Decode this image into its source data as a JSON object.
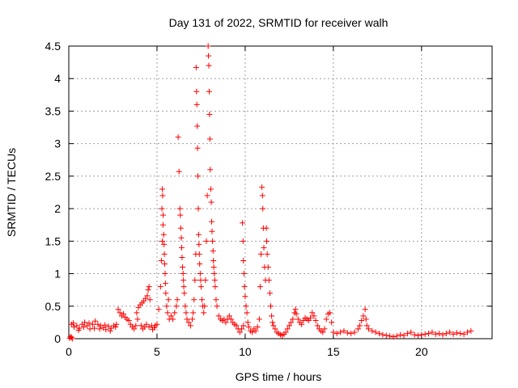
{
  "chart_data": {
    "type": "scatter",
    "title": "Day 131 of 2022, SRMTID for receiver walh",
    "xlabel": "GPS time / hours",
    "ylabel": "SRMTID / TECUs",
    "xlim": [
      0,
      24
    ],
    "ylim": [
      0,
      4.5
    ],
    "x_ticks": [
      0,
      5,
      10,
      15,
      20
    ],
    "x_tick_labels": [
      "0",
      "5",
      "10",
      "15",
      "20"
    ],
    "y_ticks": [
      0,
      0.5,
      1,
      1.5,
      2,
      2.5,
      3,
      3.5,
      4,
      4.5
    ],
    "y_tick_labels": [
      "0",
      "0.5",
      "1",
      "1.5",
      "2",
      "2.5",
      "3",
      "3.5",
      "4",
      "4.5"
    ],
    "grid": true,
    "marker": "plus",
    "series": [
      {
        "name": "SRMTID",
        "color": "#ff0000",
        "points": [
          [
            0.05,
            0.01
          ],
          [
            0.1,
            0.03
          ],
          [
            0.15,
            0.02
          ],
          [
            0.2,
            0.0
          ],
          [
            0.15,
            0.22
          ],
          [
            0.3,
            0.18
          ],
          [
            0.45,
            0.2
          ],
          [
            0.6,
            0.16
          ],
          [
            0.75,
            0.22
          ],
          [
            0.9,
            0.25
          ],
          [
            1.05,
            0.2
          ],
          [
            1.2,
            0.15
          ],
          [
            1.35,
            0.22
          ],
          [
            1.5,
            0.27
          ],
          [
            1.65,
            0.22
          ],
          [
            1.8,
            0.2
          ],
          [
            1.95,
            0.17
          ],
          [
            2.1,
            0.14
          ],
          [
            2.25,
            0.19
          ],
          [
            2.4,
            0.16
          ],
          [
            2.55,
            0.2
          ],
          [
            2.7,
            0.22
          ],
          [
            0.25,
            0.24
          ],
          [
            0.55,
            0.13
          ],
          [
            0.85,
            0.18
          ],
          [
            1.15,
            0.24
          ],
          [
            1.45,
            0.16
          ],
          [
            1.75,
            0.15
          ],
          [
            2.05,
            0.21
          ],
          [
            2.35,
            0.12
          ],
          [
            2.65,
            0.18
          ],
          [
            2.8,
            0.45
          ],
          [
            2.9,
            0.4
          ],
          [
            3.0,
            0.35
          ],
          [
            3.1,
            0.38
          ],
          [
            3.2,
            0.33
          ],
          [
            3.3,
            0.3
          ],
          [
            3.4,
            0.28
          ],
          [
            3.5,
            0.22
          ],
          [
            3.6,
            0.18
          ],
          [
            3.7,
            0.15
          ],
          [
            3.8,
            0.2
          ],
          [
            3.9,
            0.3
          ],
          [
            3.85,
            0.4
          ],
          [
            3.95,
            0.48
          ],
          [
            4.05,
            0.52
          ],
          [
            4.15,
            0.55
          ],
          [
            4.25,
            0.58
          ],
          [
            4.35,
            0.62
          ],
          [
            4.45,
            0.66
          ],
          [
            4.5,
            0.75
          ],
          [
            4.55,
            0.8
          ],
          [
            4.6,
            0.6
          ],
          [
            4.1,
            0.2
          ],
          [
            4.2,
            0.15
          ],
          [
            4.3,
            0.18
          ],
          [
            4.4,
            0.22
          ],
          [
            4.55,
            0.18
          ],
          [
            4.7,
            0.2
          ],
          [
            4.85,
            0.17
          ],
          [
            5.0,
            0.22
          ],
          [
            4.75,
            0.14
          ],
          [
            4.9,
            0.2
          ],
          [
            5.1,
            0.45
          ],
          [
            5.2,
            0.8
          ],
          [
            5.25,
            1.2
          ],
          [
            5.3,
            1.5
          ],
          [
            5.3,
            2.3
          ],
          [
            5.32,
            2.2
          ],
          [
            5.35,
            1.9
          ],
          [
            5.38,
            1.6
          ],
          [
            5.42,
            1.3
          ],
          [
            5.46,
            1.0
          ],
          [
            5.5,
            0.7
          ],
          [
            5.55,
            0.5
          ],
          [
            5.6,
            0.4
          ],
          [
            5.65,
            0.6
          ],
          [
            5.7,
            0.3
          ],
          [
            5.28,
            2.0
          ],
          [
            5.34,
            1.75
          ],
          [
            5.4,
            1.45
          ],
          [
            5.44,
            1.15
          ],
          [
            5.48,
            0.85
          ],
          [
            5.8,
            0.35
          ],
          [
            5.9,
            0.3
          ],
          [
            6.0,
            0.4
          ],
          [
            6.1,
            0.5
          ],
          [
            6.15,
            0.6
          ],
          [
            6.2,
            3.1
          ],
          [
            6.25,
            2.57
          ],
          [
            6.3,
            2.0
          ],
          [
            6.35,
            1.7
          ],
          [
            6.4,
            1.4
          ],
          [
            6.45,
            1.1
          ],
          [
            6.5,
            0.9
          ],
          [
            6.55,
            0.7
          ],
          [
            6.6,
            0.5
          ],
          [
            6.65,
            0.4
          ],
          [
            6.7,
            0.3
          ],
          [
            6.8,
            0.25
          ],
          [
            6.9,
            0.2
          ],
          [
            7.0,
            0.3
          ],
          [
            6.32,
            1.9
          ],
          [
            6.38,
            1.55
          ],
          [
            6.42,
            1.25
          ],
          [
            6.48,
            1.0
          ],
          [
            6.52,
            0.8
          ],
          [
            7.05,
            0.4
          ],
          [
            7.1,
            0.6
          ],
          [
            7.15,
            0.9
          ],
          [
            7.2,
            1.3
          ],
          [
            7.22,
            4.17
          ],
          [
            7.24,
            3.8
          ],
          [
            7.26,
            3.6
          ],
          [
            7.28,
            3.27
          ],
          [
            7.3,
            2.93
          ],
          [
            7.32,
            2.5
          ],
          [
            7.34,
            2.0
          ],
          [
            7.36,
            1.6
          ],
          [
            7.4,
            1.3
          ],
          [
            7.45,
            1.0
          ],
          [
            7.5,
            0.8
          ],
          [
            7.55,
            0.6
          ],
          [
            7.6,
            0.5
          ],
          [
            7.65,
            0.4
          ],
          [
            7.38,
            1.45
          ],
          [
            7.42,
            1.15
          ],
          [
            7.48,
            0.9
          ],
          [
            7.7,
            0.5
          ],
          [
            7.75,
            0.9
          ],
          [
            7.8,
            1.5
          ],
          [
            7.85,
            2.2
          ],
          [
            7.9,
            4.5
          ],
          [
            7.92,
            4.35
          ],
          [
            7.94,
            4.2
          ],
          [
            7.96,
            3.8
          ],
          [
            7.98,
            3.45
          ],
          [
            8.0,
            3.07
          ],
          [
            8.02,
            2.6
          ],
          [
            8.05,
            2.3
          ],
          [
            8.08,
            2.1
          ],
          [
            8.1,
            1.8
          ],
          [
            8.15,
            1.5
          ],
          [
            8.2,
            1.2
          ],
          [
            8.25,
            1.0
          ],
          [
            8.3,
            0.8
          ],
          [
            8.35,
            0.6
          ],
          [
            8.4,
            0.5
          ],
          [
            8.12,
            1.65
          ],
          [
            8.18,
            1.35
          ],
          [
            8.22,
            1.1
          ],
          [
            8.28,
            0.9
          ],
          [
            8.5,
            0.35
          ],
          [
            8.6,
            0.3
          ],
          [
            8.7,
            0.28
          ],
          [
            8.8,
            0.3
          ],
          [
            8.9,
            0.25
          ],
          [
            9.0,
            0.3
          ],
          [
            9.1,
            0.35
          ],
          [
            9.2,
            0.3
          ],
          [
            9.3,
            0.25
          ],
          [
            9.4,
            0.22
          ],
          [
            9.5,
            0.2
          ],
          [
            9.6,
            0.15
          ],
          [
            9.7,
            0.1
          ],
          [
            9.8,
            0.15
          ],
          [
            9.9,
            0.2
          ],
          [
            9.85,
            1.78
          ],
          [
            9.88,
            1.5
          ],
          [
            9.9,
            1.2
          ],
          [
            9.93,
            1.0
          ],
          [
            9.96,
            0.8
          ],
          [
            10.0,
            0.65
          ],
          [
            10.05,
            0.5
          ],
          [
            10.1,
            0.4
          ],
          [
            10.15,
            0.25
          ],
          [
            10.2,
            0.18
          ],
          [
            10.3,
            0.12
          ],
          [
            10.4,
            0.1
          ],
          [
            10.5,
            0.15
          ],
          [
            10.6,
            0.12
          ],
          [
            10.7,
            0.18
          ],
          [
            10.8,
            0.3
          ],
          [
            10.85,
            0.8
          ],
          [
            10.9,
            1.3
          ],
          [
            10.95,
            2.33
          ],
          [
            10.98,
            2.2
          ],
          [
            11.0,
            2.0
          ],
          [
            11.03,
            1.7
          ],
          [
            11.06,
            1.4
          ],
          [
            11.1,
            1.1
          ],
          [
            11.15,
            0.9
          ],
          [
            11.2,
            1.7
          ],
          [
            11.22,
            1.5
          ],
          [
            11.25,
            1.3
          ],
          [
            11.3,
            1.1
          ],
          [
            11.35,
            0.9
          ],
          [
            11.4,
            0.7
          ],
          [
            11.45,
            0.5
          ],
          [
            11.5,
            0.35
          ],
          [
            11.55,
            0.25
          ],
          [
            11.6,
            0.2
          ],
          [
            11.7,
            0.15
          ],
          [
            11.8,
            0.1
          ],
          [
            11.9,
            0.08
          ],
          [
            12.0,
            0.06
          ],
          [
            12.1,
            0.05
          ],
          [
            12.2,
            0.07
          ],
          [
            12.3,
            0.1
          ],
          [
            12.4,
            0.15
          ],
          [
            12.5,
            0.2
          ],
          [
            12.6,
            0.25
          ],
          [
            12.7,
            0.3
          ],
          [
            12.8,
            0.4
          ],
          [
            12.85,
            0.45
          ],
          [
            12.9,
            0.38
          ],
          [
            13.0,
            0.3
          ],
          [
            13.1,
            0.25
          ],
          [
            13.2,
            0.22
          ],
          [
            13.3,
            0.28
          ],
          [
            13.4,
            0.32
          ],
          [
            13.5,
            0.3
          ],
          [
            13.6,
            0.28
          ],
          [
            13.7,
            0.32
          ],
          [
            13.8,
            0.4
          ],
          [
            13.9,
            0.35
          ],
          [
            14.0,
            0.28
          ],
          [
            14.1,
            0.2
          ],
          [
            14.2,
            0.15
          ],
          [
            14.3,
            0.12
          ],
          [
            14.4,
            0.1
          ],
          [
            14.5,
            0.15
          ],
          [
            14.6,
            0.3
          ],
          [
            14.7,
            0.38
          ],
          [
            14.8,
            0.4
          ],
          [
            14.9,
            0.25
          ],
          [
            15.0,
            0.1
          ],
          [
            15.2,
            0.08
          ],
          [
            15.4,
            0.1
          ],
          [
            15.6,
            0.12
          ],
          [
            15.8,
            0.09
          ],
          [
            16.0,
            0.08
          ],
          [
            16.2,
            0.1
          ],
          [
            16.4,
            0.15
          ],
          [
            16.5,
            0.2
          ],
          [
            16.6,
            0.28
          ],
          [
            16.7,
            0.35
          ],
          [
            16.8,
            0.45
          ],
          [
            16.85,
            0.3
          ],
          [
            16.9,
            0.2
          ],
          [
            17.0,
            0.15
          ],
          [
            17.2,
            0.12
          ],
          [
            17.4,
            0.1
          ],
          [
            17.6,
            0.08
          ],
          [
            17.8,
            0.06
          ],
          [
            18.0,
            0.05
          ],
          [
            18.2,
            0.04
          ],
          [
            18.4,
            0.03
          ],
          [
            18.6,
            0.04
          ],
          [
            18.8,
            0.06
          ],
          [
            19.0,
            0.05
          ],
          [
            19.2,
            0.08
          ],
          [
            19.4,
            0.1
          ],
          [
            19.6,
            0.06
          ],
          [
            19.8,
            0.05
          ],
          [
            20.0,
            0.06
          ],
          [
            20.2,
            0.07
          ],
          [
            20.4,
            0.08
          ],
          [
            20.6,
            0.1
          ],
          [
            20.8,
            0.07
          ],
          [
            21.0,
            0.08
          ],
          [
            21.2,
            0.06
          ],
          [
            21.4,
            0.08
          ],
          [
            21.6,
            0.1
          ],
          [
            21.8,
            0.07
          ],
          [
            22.0,
            0.09
          ],
          [
            22.2,
            0.08
          ],
          [
            22.4,
            0.07
          ],
          [
            22.6,
            0.1
          ],
          [
            22.8,
            0.12
          ]
        ]
      }
    ]
  }
}
